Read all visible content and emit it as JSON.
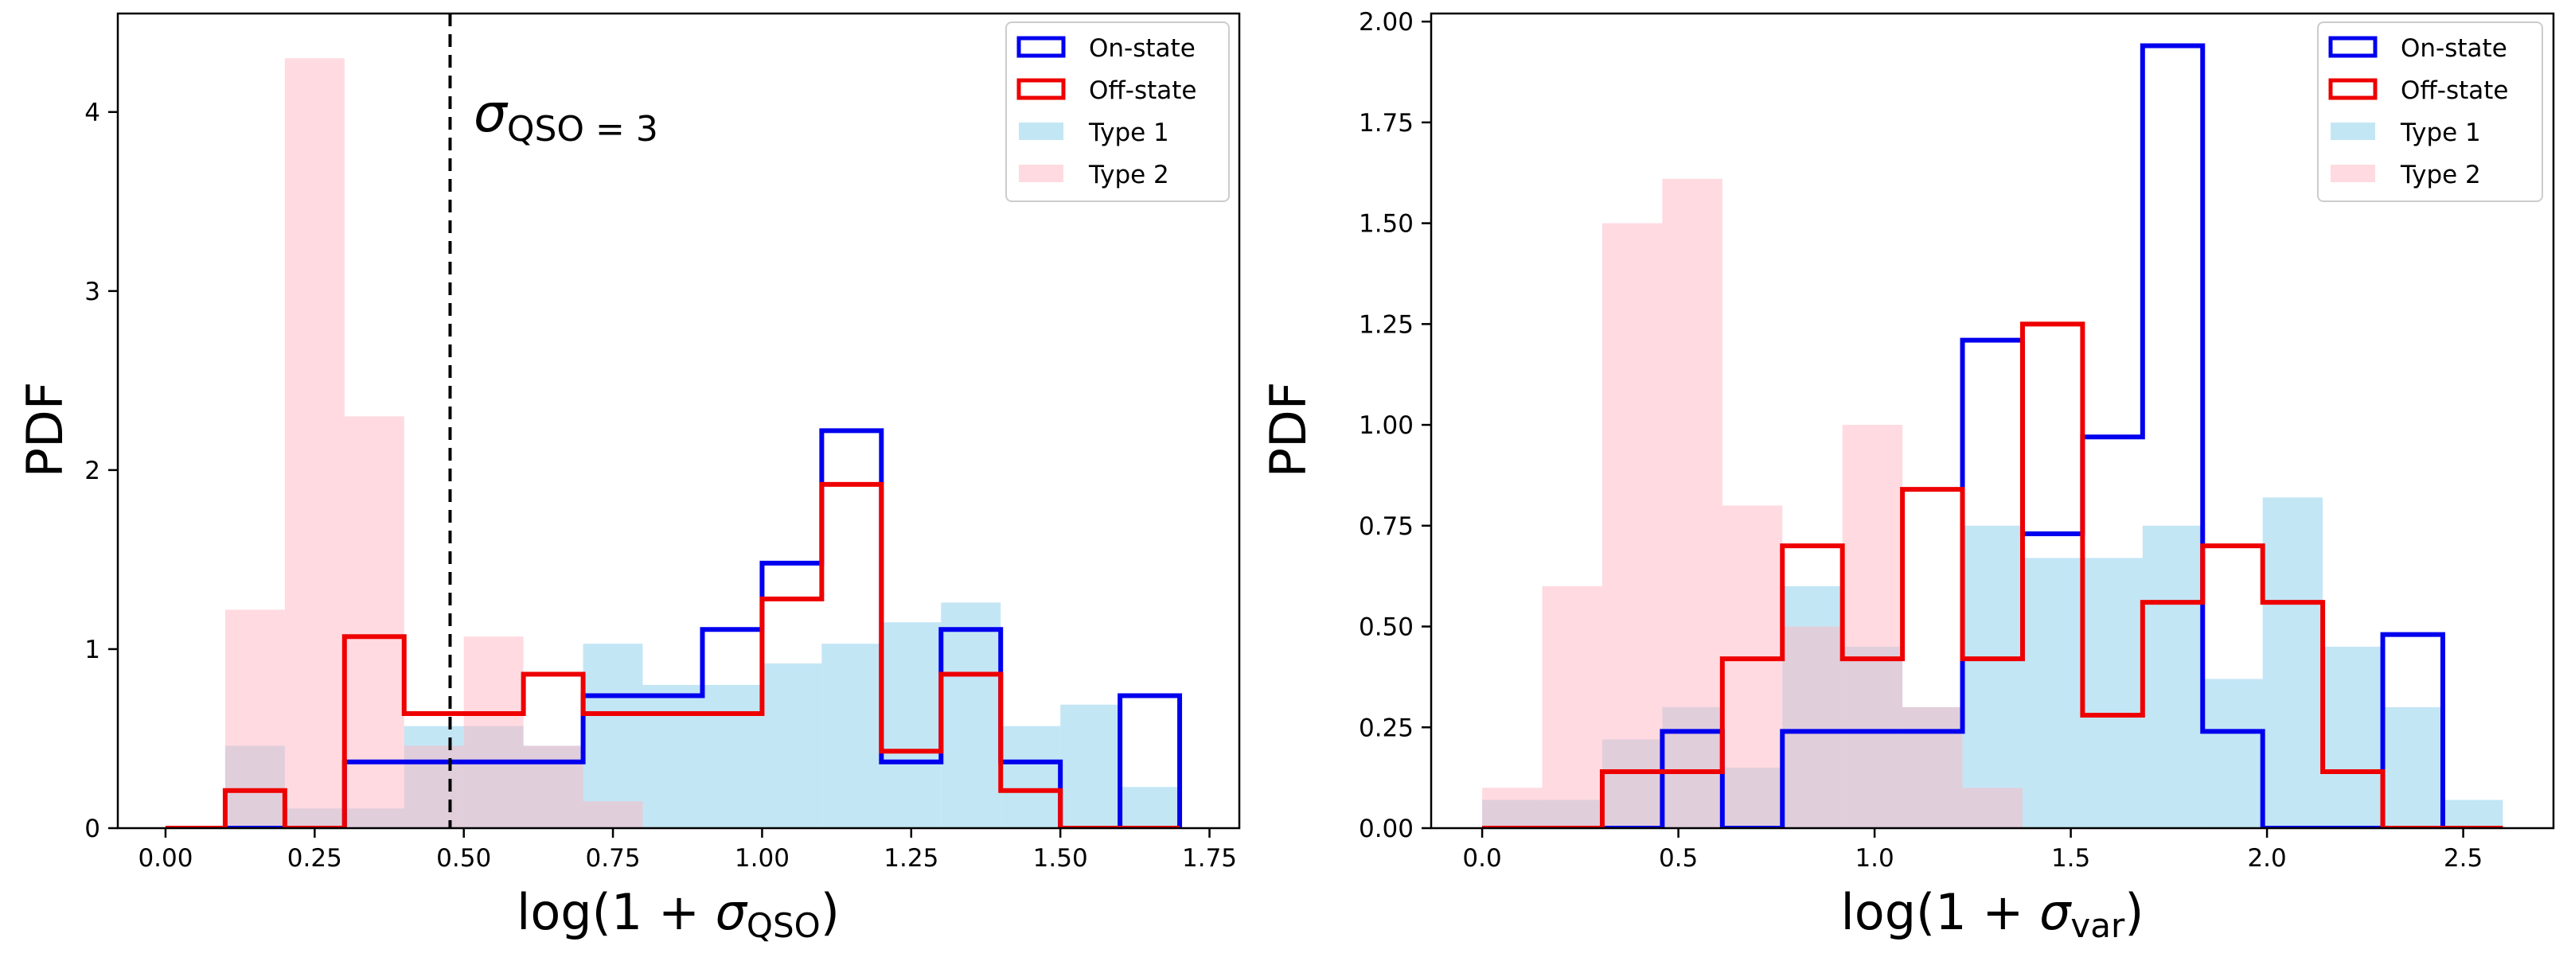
{
  "colors": {
    "on_state": "#0000ee",
    "off_state": "#ee0000",
    "type1": "#87ceeb",
    "type2": "#ffb6c1"
  },
  "chart_data": [
    {
      "type": "histogram",
      "xlabel_base": "log(1 + ",
      "xlabel_sym": "σ",
      "xlabel_sub": "QSO",
      "xlabel_close": ")",
      "ylabel": "PDF",
      "xlim": [
        -0.08,
        1.8
      ],
      "ylim": [
        0,
        4.55
      ],
      "xticks": [
        0.0,
        0.25,
        0.5,
        0.75,
        1.0,
        1.25,
        1.5,
        1.75
      ],
      "xtick_labels": [
        "0.00",
        "0.25",
        "0.50",
        "0.75",
        "1.00",
        "1.25",
        "1.50",
        "1.75"
      ],
      "yticks": [
        0,
        1,
        2,
        3,
        4
      ],
      "ytick_labels": [
        "0",
        "1",
        "2",
        "3",
        "4"
      ],
      "vline": {
        "x": 0.477,
        "style": "dashed"
      },
      "annotation": {
        "sym": "σ",
        "sub": "QSO = 3"
      },
      "legend": [
        "On-state",
        "Off-state",
        "Type 1",
        "Type 2"
      ],
      "legend_loc": "upper right",
      "bin_edges": [
        0.0,
        0.1,
        0.2,
        0.3,
        0.4,
        0.5,
        0.6,
        0.7,
        0.8,
        0.9,
        1.0,
        1.1,
        1.2,
        1.3,
        1.4,
        1.5,
        1.6,
        1.7
      ],
      "series": [
        {
          "name": "Type 1",
          "style": "filled",
          "color": "type1",
          "values": [
            0,
            0.46,
            0.11,
            0.11,
            0.57,
            0.57,
            0.46,
            1.03,
            0.8,
            0.8,
            0.92,
            1.03,
            1.15,
            1.26,
            0.57,
            0.69,
            0.23
          ]
        },
        {
          "name": "Type 2",
          "style": "filled",
          "color": "type2",
          "values": [
            0,
            1.22,
            4.3,
            2.3,
            0.46,
            1.07,
            0.46,
            0.15,
            0,
            0,
            0,
            0,
            0,
            0,
            0,
            0,
            0
          ]
        },
        {
          "name": "On-state",
          "style": "step",
          "color": "on_state",
          "values": [
            0,
            0,
            0,
            0.37,
            0.37,
            0.37,
            0.37,
            0.74,
            0.74,
            1.11,
            1.48,
            2.22,
            0.37,
            1.11,
            0.37,
            0,
            0.74
          ]
        },
        {
          "name": "Off-state",
          "style": "step",
          "color": "off_state",
          "values": [
            0,
            0.21,
            0,
            1.07,
            0.64,
            0.64,
            0.86,
            0.64,
            0.64,
            0.64,
            1.28,
            1.92,
            0.43,
            0.86,
            0.21,
            0,
            0
          ]
        }
      ]
    },
    {
      "type": "histogram",
      "xlabel_base": "log(1 + ",
      "xlabel_sym": "σ",
      "xlabel_sub": "var",
      "xlabel_close": ")",
      "ylabel": "PDF",
      "xlim": [
        -0.13,
        2.73
      ],
      "ylim": [
        0,
        2.02
      ],
      "xticks": [
        0.0,
        0.5,
        1.0,
        1.5,
        2.0,
        2.5
      ],
      "xtick_labels": [
        "0.0",
        "0.5",
        "1.0",
        "1.5",
        "2.0",
        "2.5"
      ],
      "yticks": [
        0,
        0.25,
        0.5,
        0.75,
        1.0,
        1.25,
        1.5,
        1.75,
        2.0
      ],
      "ytick_labels": [
        "0.00",
        "0.25",
        "0.50",
        "0.75",
        "1.00",
        "1.25",
        "1.50",
        "1.75",
        "2.00"
      ],
      "legend": [
        "On-state",
        "Off-state",
        "Type 1",
        "Type 2"
      ],
      "legend_loc": "upper right",
      "bin_edges": [
        0.0,
        0.153,
        0.306,
        0.459,
        0.612,
        0.765,
        0.918,
        1.071,
        1.224,
        1.377,
        1.53,
        1.683,
        1.836,
        1.989,
        2.142,
        2.295,
        2.448,
        2.601
      ],
      "series": [
        {
          "name": "Type 1",
          "style": "filled",
          "color": "type1",
          "values": [
            0.07,
            0.07,
            0.22,
            0.3,
            0.15,
            0.6,
            0.45,
            0.3,
            0.75,
            0.67,
            0.67,
            0.75,
            0.37,
            0.82,
            0.45,
            0.3,
            0.07
          ]
        },
        {
          "name": "Type 2",
          "style": "filled",
          "color": "type2",
          "values": [
            0.1,
            0.6,
            1.5,
            1.61,
            0.8,
            0.5,
            1.0,
            0.3,
            0.1,
            0,
            0,
            0,
            0,
            0,
            0,
            0,
            0
          ]
        },
        {
          "name": "On-state",
          "style": "step",
          "color": "on_state",
          "values": [
            0,
            0,
            0,
            0.24,
            0,
            0.24,
            0.24,
            0.24,
            1.21,
            0.73,
            0.97,
            1.94,
            0.24,
            0,
            0,
            0.48,
            0
          ]
        },
        {
          "name": "Off-state",
          "style": "step",
          "color": "off_state",
          "values": [
            0,
            0,
            0.14,
            0.14,
            0.42,
            0.7,
            0.42,
            0.84,
            0.42,
            1.25,
            0.28,
            0.56,
            0.7,
            0.56,
            0.14,
            0,
            0
          ]
        }
      ]
    }
  ]
}
